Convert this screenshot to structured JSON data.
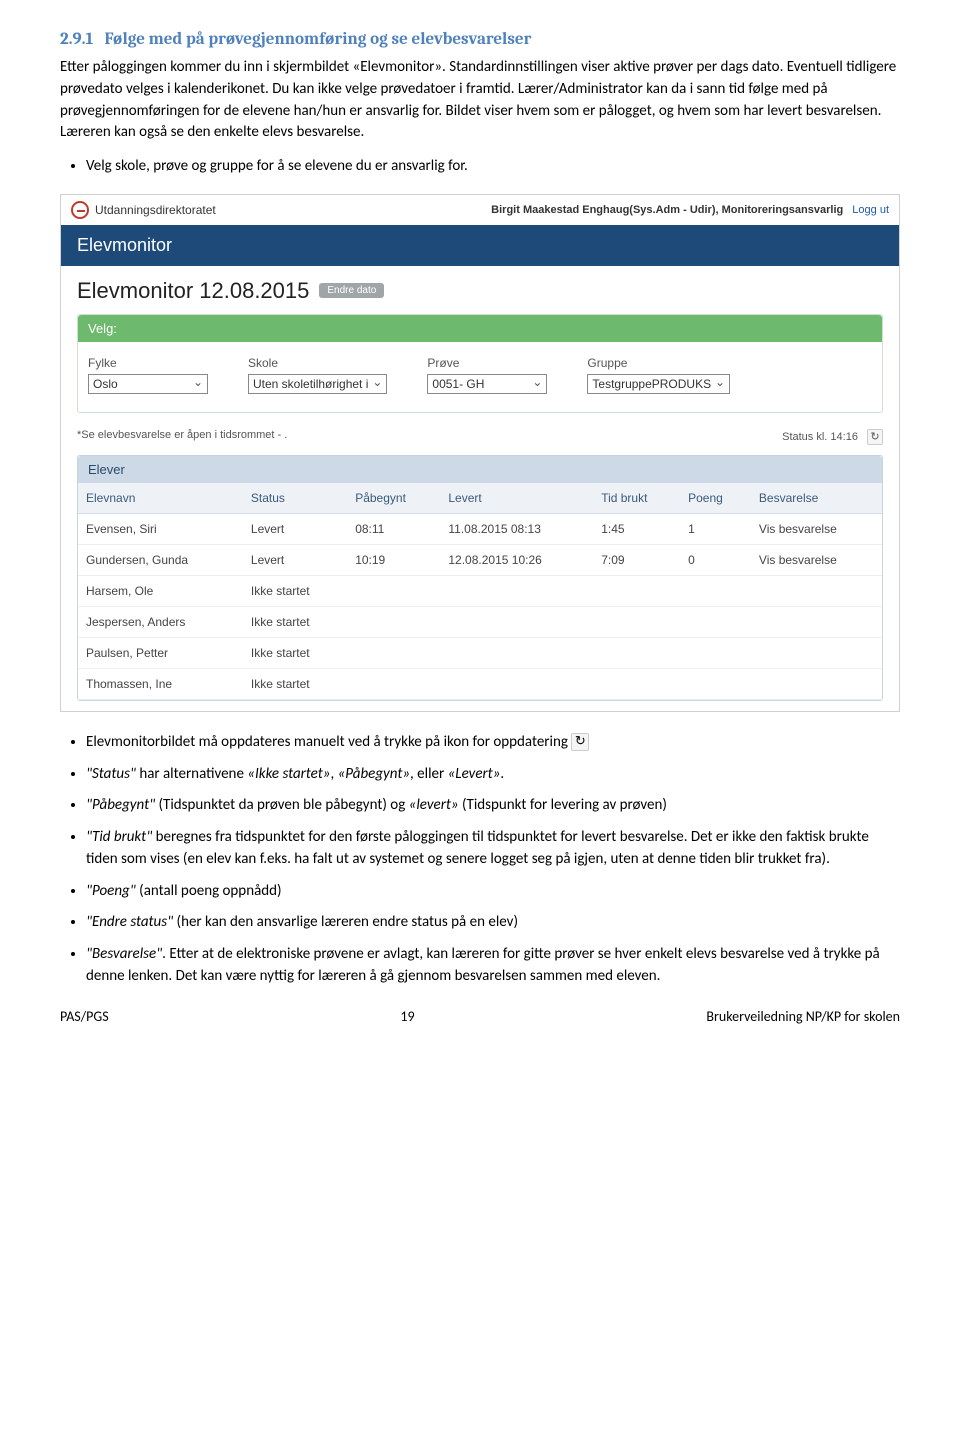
{
  "heading": {
    "num": "2.9.1",
    "text": "Følge med på prøvegjennomføring og se elevbesvarelser"
  },
  "para1": "Etter påloggingen kommer du inn i skjermbildet «Elevmonitor». Standardinnstillingen viser aktive prøver per dags dato. Eventuell tidligere prøvedato velges i kalenderikonet. Du kan ikke velge prøvedatoer i framtid. Lærer/Administrator kan da i sann tid følge med på prøvegjennomføringen for de elevene han/hun er ansvarlig for. Bildet viser hvem som er pålogget, og hvem som har levert besvarelsen. Læreren kan også se den enkelte elevs besvarelse.",
  "bullet_pre": "Velg skole, prøve og gruppe for å se elevene du er ansvarlig for.",
  "screenshot": {
    "org": "Utdanningsdirektoratet",
    "user": "Birgit Maakestad Enghaug(Sys.Adm - Udir), Monitoreringsansvarlig",
    "loggut": "Logg ut",
    "banner": "Elevmonitor",
    "title": "Elevmonitor 12.08.2015",
    "endre_dato": "Endre dato",
    "velg_label": "Velg:",
    "fields": {
      "fylke": {
        "label": "Fylke",
        "value": "Oslo"
      },
      "skole": {
        "label": "Skole",
        "value": "Uten skoletilhørighet i"
      },
      "prove": {
        "label": "Prøve",
        "value": "0051- GH"
      },
      "gruppe": {
        "label": "Gruppe",
        "value": "TestgruppePRODUKS"
      }
    },
    "notice": "*Se elevbesvarelse er åpen i tidsrommet - .",
    "status_right": "Status kl. 14:16",
    "elever_head": "Elever",
    "columns": [
      "Elevnavn",
      "Status",
      "Påbegynt",
      "Levert",
      "Tid brukt",
      "Poeng",
      "Besvarelse"
    ],
    "rows": [
      {
        "navn": "Evensen, Siri",
        "status": "Levert",
        "pabegynt": "08:11",
        "levert": "11.08.2015 08:13",
        "tid": "1:45",
        "poeng": "1",
        "besv": "Vis besvarelse",
        "green": true
      },
      {
        "navn": "Gundersen, Gunda",
        "status": "Levert",
        "pabegynt": "10:19",
        "levert": "12.08.2015 10:26",
        "tid": "7:09",
        "poeng": "0",
        "besv": "Vis besvarelse",
        "green": true
      },
      {
        "navn": "Harsem, Ole",
        "status": "Ikke startet",
        "pabegynt": "",
        "levert": "",
        "tid": "",
        "poeng": "",
        "besv": "",
        "green": false
      },
      {
        "navn": "Jespersen, Anders",
        "status": "Ikke startet",
        "pabegynt": "",
        "levert": "",
        "tid": "",
        "poeng": "",
        "besv": "",
        "green": false
      },
      {
        "navn": "Paulsen, Petter",
        "status": "Ikke startet",
        "pabegynt": "",
        "levert": "",
        "tid": "",
        "poeng": "",
        "besv": "",
        "green": false
      },
      {
        "navn": "Thomassen, Ine",
        "status": "Ikke startet",
        "pabegynt": "",
        "levert": "",
        "tid": "",
        "poeng": "",
        "besv": "",
        "green": false
      }
    ]
  },
  "bullets_after": [
    {
      "html": "Elevmonitorbildet må oppdateres manuelt ved å trykke på ikon for oppdatering",
      "icon": true
    },
    {
      "html": "\"Status\" har alternativene «Ikke startet», «Påbegynt», eller «Levert»."
    },
    {
      "html": "\"Påbegynt\" (Tidspunktet da prøven ble påbegynt) og «levert» (Tidspunkt for levering av prøven)"
    },
    {
      "html": "\"Tid brukt\" beregnes fra tidspunktet for den første påloggingen til tidspunktet for levert besvarelse. Det er ikke den faktisk brukte tiden som vises (en elev kan f.eks. ha falt ut av systemet og senere logget seg på igjen, uten at denne tiden blir trukket fra)."
    },
    {
      "html": "\"Poeng\" (antall poeng oppnådd)"
    },
    {
      "html": "\"Endre status\" (her kan den ansvarlige læreren endre status på en elev)"
    },
    {
      "html": "\"Besvarelse\". Etter at de elektroniske prøvene er avlagt, kan læreren for gitte prøver se hver enkelt elevs besvarelse ved å trykke på denne lenken. Det kan være nyttig for læreren å gå gjennom besvarelsen sammen med eleven."
    }
  ],
  "footer": {
    "left": "PAS/PGS",
    "mid": "19",
    "right": "Brukerveiledning NP/KP for skolen"
  }
}
